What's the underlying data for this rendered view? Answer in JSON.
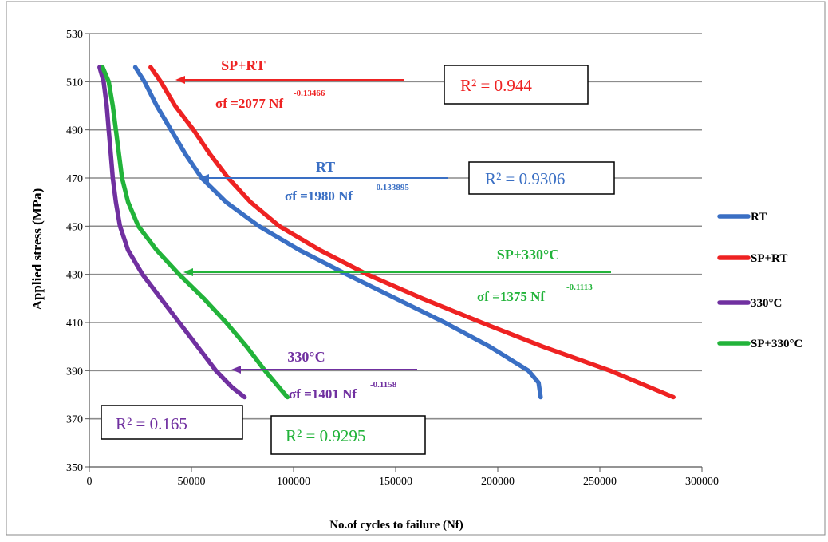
{
  "chart_data": {
    "type": "line",
    "xlabel": "No.of cycles to failure (Nf)",
    "ylabel": "Applied stress (MPa)",
    "xlim": [
      0,
      300000
    ],
    "ylim": [
      350,
      530
    ],
    "x_ticks": [
      "0",
      "50000",
      "100000",
      "150000",
      "200000",
      "250000",
      "300000"
    ],
    "y_ticks": [
      "350",
      "370",
      "390",
      "410",
      "430",
      "450",
      "470",
      "490",
      "510",
      "530"
    ],
    "grid": "horizontal",
    "legend_position": "right",
    "series": [
      {
        "name": "RT",
        "color": "#3a6fc4",
        "points": [
          [
            22500,
            516
          ],
          [
            27000,
            510
          ],
          [
            33000,
            500
          ],
          [
            40000,
            490
          ],
          [
            47000,
            480
          ],
          [
            55000,
            470
          ],
          [
            67000,
            460
          ],
          [
            83000,
            450
          ],
          [
            103000,
            440
          ],
          [
            126000,
            430
          ],
          [
            150000,
            420
          ],
          [
            174000,
            410
          ],
          [
            196000,
            400
          ],
          [
            215000,
            390
          ],
          [
            220000,
            385
          ],
          [
            221000,
            379
          ]
        ]
      },
      {
        "name": "SP+RT",
        "color": "#ee2222",
        "points": [
          [
            30000,
            516
          ],
          [
            35000,
            510
          ],
          [
            42000,
            500
          ],
          [
            51000,
            490
          ],
          [
            59000,
            480
          ],
          [
            68000,
            470
          ],
          [
            79000,
            460
          ],
          [
            93000,
            450
          ],
          [
            113000,
            440
          ],
          [
            136000,
            430
          ],
          [
            163000,
            420
          ],
          [
            192000,
            410
          ],
          [
            222000,
            400
          ],
          [
            255000,
            390
          ],
          [
            286000,
            379
          ]
        ]
      },
      {
        "name": "330°C",
        "color": "#7030a0",
        "points": [
          [
            5000,
            516
          ],
          [
            7000,
            510
          ],
          [
            8500,
            500
          ],
          [
            9500,
            490
          ],
          [
            10500,
            480
          ],
          [
            11500,
            470
          ],
          [
            13000,
            460
          ],
          [
            15000,
            450
          ],
          [
            19000,
            440
          ],
          [
            26000,
            430
          ],
          [
            35000,
            420
          ],
          [
            44000,
            410
          ],
          [
            53000,
            400
          ],
          [
            62000,
            390
          ],
          [
            70000,
            383
          ],
          [
            76000,
            379
          ]
        ]
      },
      {
        "name": "SP+330°C",
        "color": "#22b33a",
        "points": [
          [
            6500,
            516
          ],
          [
            9500,
            510
          ],
          [
            11500,
            500
          ],
          [
            13000,
            490
          ],
          [
            14500,
            480
          ],
          [
            16000,
            470
          ],
          [
            19000,
            460
          ],
          [
            24000,
            450
          ],
          [
            33000,
            440
          ],
          [
            44000,
            430
          ],
          [
            56000,
            420
          ],
          [
            67000,
            410
          ],
          [
            77000,
            400
          ],
          [
            86000,
            390
          ],
          [
            94000,
            382
          ],
          [
            97000,
            379
          ]
        ]
      }
    ],
    "annotations": [
      {
        "label": "SP+RT",
        "equation": "σf =2077 Nf",
        "exponent": "-0.13466",
        "r2": "R² = 0.944",
        "color": "#ee2222",
        "r2_color": "#ee2222"
      },
      {
        "label": "RT",
        "equation": "σf =1980 Nf",
        "exponent": "-0.133895",
        "r2": "R² = 0.9306",
        "color": "#3a6fc4",
        "r2_color": "#3a6fc4"
      },
      {
        "label": "SP+330°C",
        "equation": "σf =1375 Nf",
        "exponent": "-0.1113",
        "r2": "R² = 0.9295",
        "color": "#22b33a",
        "r2_color": "#22b33a"
      },
      {
        "label": "330°C",
        "equation": "σf =1401 Nf",
        "exponent": "-0.1158",
        "r2": "R² = 0.165",
        "color": "#7030a0",
        "r2_color": "#7030a0"
      }
    ]
  }
}
